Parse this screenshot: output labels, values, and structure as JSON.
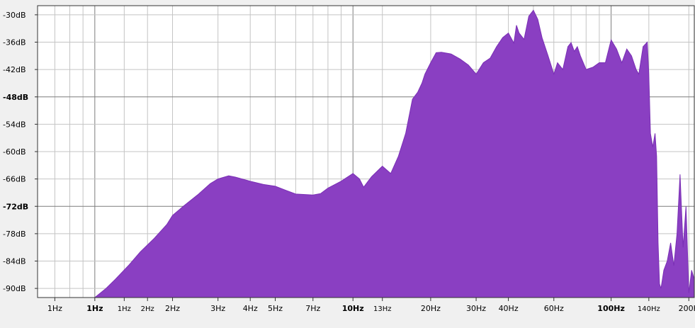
{
  "chart_data": {
    "type": "area",
    "title": "",
    "xlabel": "",
    "ylabel": "",
    "x_scale": "log",
    "xlim_hz": [
      0.6,
      210
    ],
    "ylim_db": [
      -92,
      -28
    ],
    "grid": true,
    "colors": {
      "fill": "#8a3fc2",
      "stroke": "#7a2fb5",
      "plot_bg": "#ffffff",
      "grid_minor": "#c4c4c4",
      "grid_major": "#7d7d7d",
      "frame": "#333333"
    },
    "y_ticks": [
      {
        "db": -30,
        "label": "-30dB",
        "major": false
      },
      {
        "db": -36,
        "label": "-36dB",
        "major": false
      },
      {
        "db": -42,
        "label": "-42dB",
        "major": false
      },
      {
        "db": -48,
        "label": "-48dB",
        "major": true
      },
      {
        "db": -54,
        "label": "-54dB",
        "major": false
      },
      {
        "db": -60,
        "label": "-60dB",
        "major": false
      },
      {
        "db": -66,
        "label": "-66dB",
        "major": false
      },
      {
        "db": -72,
        "label": "-72dB",
        "major": true
      },
      {
        "db": -78,
        "label": "-78dB",
        "major": false
      },
      {
        "db": -84,
        "label": "-84dB",
        "major": false
      },
      {
        "db": -90,
        "label": "-90dB",
        "major": false
      }
    ],
    "x_ticks": [
      {
        "hz": 0.7,
        "label": "1Hz",
        "major": false,
        "small": false
      },
      {
        "hz": 1.0,
        "label": "1Hz",
        "major": true,
        "small": false
      },
      {
        "hz": 1.3,
        "label": "1Hz",
        "major": false,
        "small": true
      },
      {
        "hz": 1.6,
        "label": "2Hz",
        "major": false,
        "small": true
      },
      {
        "hz": 2.0,
        "label": "2Hz",
        "major": false,
        "small": false
      },
      {
        "hz": 3.0,
        "label": "3Hz",
        "major": false,
        "small": false
      },
      {
        "hz": 4.0,
        "label": "4Hz",
        "major": false,
        "small": false
      },
      {
        "hz": 5.0,
        "label": "5Hz",
        "major": false,
        "small": false
      },
      {
        "hz": 7.0,
        "label": "7Hz",
        "major": false,
        "small": false
      },
      {
        "hz": 10.0,
        "label": "10Hz",
        "major": true,
        "small": false
      },
      {
        "hz": 13.0,
        "label": "13Hz",
        "major": false,
        "small": true
      },
      {
        "hz": 20.0,
        "label": "20Hz",
        "major": false,
        "small": false
      },
      {
        "hz": 30.0,
        "label": "30Hz",
        "major": false,
        "small": false
      },
      {
        "hz": 40.0,
        "label": "40Hz",
        "major": false,
        "small": false
      },
      {
        "hz": 60.0,
        "label": "60Hz",
        "major": false,
        "small": false
      },
      {
        "hz": 100.0,
        "label": "100Hz",
        "major": true,
        "small": false
      },
      {
        "hz": 140.0,
        "label": "140Hz",
        "major": false,
        "small": true
      },
      {
        "hz": 200.0,
        "label": "200H",
        "major": false,
        "small": false
      }
    ],
    "minor_grid_hz": [
      0.8,
      0.9,
      6,
      8,
      9,
      50,
      70,
      80,
      90
    ],
    "series": [
      {
        "points": [
          {
            "x": 0.98,
            "y": -93
          },
          {
            "x": 1.0,
            "y": -92.1
          },
          {
            "x": 1.1,
            "y": -90.1
          },
          {
            "x": 1.2,
            "y": -88
          },
          {
            "x": 1.35,
            "y": -85
          },
          {
            "x": 1.5,
            "y": -82
          },
          {
            "x": 1.7,
            "y": -79
          },
          {
            "x": 1.9,
            "y": -76
          },
          {
            "x": 2.0,
            "y": -74
          },
          {
            "x": 2.2,
            "y": -72
          },
          {
            "x": 2.5,
            "y": -69.5
          },
          {
            "x": 2.8,
            "y": -67
          },
          {
            "x": 3.0,
            "y": -66
          },
          {
            "x": 3.3,
            "y": -65.3
          },
          {
            "x": 3.5,
            "y": -65.6
          },
          {
            "x": 4.0,
            "y": -66.5
          },
          {
            "x": 4.5,
            "y": -67.2
          },
          {
            "x": 5.0,
            "y": -67.6
          },
          {
            "x": 5.5,
            "y": -68.5
          },
          {
            "x": 6.0,
            "y": -69.3
          },
          {
            "x": 7.0,
            "y": -69.5
          },
          {
            "x": 7.5,
            "y": -69.2
          },
          {
            "x": 8.0,
            "y": -68
          },
          {
            "x": 9.0,
            "y": -66.5
          },
          {
            "x": 10.0,
            "y": -64.8
          },
          {
            "x": 10.6,
            "y": -66
          },
          {
            "x": 11.0,
            "y": -67.8
          },
          {
            "x": 11.8,
            "y": -65.5
          },
          {
            "x": 13.0,
            "y": -63.2
          },
          {
            "x": 14.0,
            "y": -64.8
          },
          {
            "x": 15.0,
            "y": -61
          },
          {
            "x": 16.0,
            "y": -56
          },
          {
            "x": 17.0,
            "y": -48.5
          },
          {
            "x": 17.8,
            "y": -47
          },
          {
            "x": 18.5,
            "y": -45
          },
          {
            "x": 19.0,
            "y": -43
          },
          {
            "x": 20.0,
            "y": -40.5
          },
          {
            "x": 21.0,
            "y": -38.3
          },
          {
            "x": 22.0,
            "y": -38.2
          },
          {
            "x": 24.0,
            "y": -38.6
          },
          {
            "x": 26.0,
            "y": -39.7
          },
          {
            "x": 28.0,
            "y": -41
          },
          {
            "x": 30.0,
            "y": -43
          },
          {
            "x": 32.0,
            "y": -40.5
          },
          {
            "x": 34.0,
            "y": -39.5
          },
          {
            "x": 36.0,
            "y": -37
          },
          {
            "x": 38.0,
            "y": -35
          },
          {
            "x": 40.0,
            "y": -34
          },
          {
            "x": 42.0,
            "y": -36.2
          },
          {
            "x": 43.0,
            "y": -32.3
          },
          {
            "x": 44.0,
            "y": -34
          },
          {
            "x": 46.0,
            "y": -35.4
          },
          {
            "x": 48.0,
            "y": -30.3
          },
          {
            "x": 50.0,
            "y": -29
          },
          {
            "x": 52.0,
            "y": -31
          },
          {
            "x": 54.0,
            "y": -35
          },
          {
            "x": 57.0,
            "y": -39
          },
          {
            "x": 60.0,
            "y": -43
          },
          {
            "x": 62.0,
            "y": -40.5
          },
          {
            "x": 65.0,
            "y": -42
          },
          {
            "x": 68.0,
            "y": -37
          },
          {
            "x": 70.0,
            "y": -36.1
          },
          {
            "x": 72.0,
            "y": -38
          },
          {
            "x": 74.0,
            "y": -37
          },
          {
            "x": 76.0,
            "y": -39
          },
          {
            "x": 80.0,
            "y": -42
          },
          {
            "x": 85.0,
            "y": -41.5
          },
          {
            "x": 90.0,
            "y": -40.5
          },
          {
            "x": 95.0,
            "y": -40.5
          },
          {
            "x": 100.0,
            "y": -35.5
          },
          {
            "x": 105.0,
            "y": -37.5
          },
          {
            "x": 110.0,
            "y": -40.5
          },
          {
            "x": 115.0,
            "y": -37.5
          },
          {
            "x": 120.0,
            "y": -39
          },
          {
            "x": 125.0,
            "y": -42
          },
          {
            "x": 128.0,
            "y": -43
          },
          {
            "x": 133.0,
            "y": -37
          },
          {
            "x": 138.0,
            "y": -36
          },
          {
            "x": 140.0,
            "y": -43
          },
          {
            "x": 142.0,
            "y": -56
          },
          {
            "x": 145.0,
            "y": -59
          },
          {
            "x": 148.0,
            "y": -56
          },
          {
            "x": 150.0,
            "y": -61
          },
          {
            "x": 152.0,
            "y": -80
          },
          {
            "x": 154.0,
            "y": -89
          },
          {
            "x": 156.0,
            "y": -90
          },
          {
            "x": 160.0,
            "y": -86
          },
          {
            "x": 165.0,
            "y": -84
          },
          {
            "x": 170.0,
            "y": -80
          },
          {
            "x": 175.0,
            "y": -85
          },
          {
            "x": 180.0,
            "y": -78
          },
          {
            "x": 185.0,
            "y": -65
          },
          {
            "x": 190.0,
            "y": -81
          },
          {
            "x": 195.0,
            "y": -72
          },
          {
            "x": 200.0,
            "y": -91
          },
          {
            "x": 205.0,
            "y": -86
          },
          {
            "x": 210.0,
            "y": -88
          }
        ]
      }
    ]
  }
}
